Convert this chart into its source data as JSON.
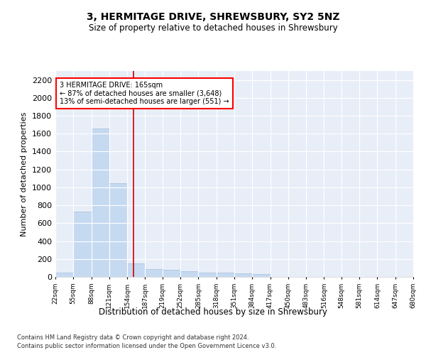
{
  "title": "3, HERMITAGE DRIVE, SHREWSBURY, SY2 5NZ",
  "subtitle": "Size of property relative to detached houses in Shrewsbury",
  "xlabel": "Distribution of detached houses by size in Shrewsbury",
  "ylabel": "Number of detached properties",
  "footer_line1": "Contains HM Land Registry data © Crown copyright and database right 2024.",
  "footer_line2": "Contains public sector information licensed under the Open Government Licence v3.0.",
  "annotation_line1": "3 HERMITAGE DRIVE: 165sqm",
  "annotation_line2": "← 87% of detached houses are smaller (3,648)",
  "annotation_line3": "13% of semi-detached houses are larger (551) →",
  "bar_color": "#c5d9f1",
  "bar_edge_color": "#adc4e0",
  "redline_x": 165,
  "redline_color": "#cc0000",
  "background_color": "#e8eef8",
  "bins_start": [
    22,
    55,
    88,
    121,
    154,
    187,
    219,
    252,
    285,
    318,
    351,
    384,
    417,
    450,
    483,
    516,
    548,
    581,
    614,
    647
  ],
  "bin_width": 33,
  "values": [
    50,
    730,
    1660,
    1050,
    150,
    90,
    80,
    60,
    50,
    50,
    40,
    35,
    0,
    0,
    0,
    0,
    0,
    0,
    0,
    0
  ],
  "ylim": [
    0,
    2300
  ],
  "yticks": [
    0,
    200,
    400,
    600,
    800,
    1000,
    1200,
    1400,
    1600,
    1800,
    2000,
    2200
  ],
  "xlim": [
    22,
    680
  ],
  "tick_labels": [
    "22sqm",
    "55sqm",
    "88sqm",
    "121sqm",
    "154sqm",
    "187sqm",
    "219sqm",
    "252sqm",
    "285sqm",
    "318sqm",
    "351sqm",
    "384sqm",
    "417sqm",
    "450sqm",
    "483sqm",
    "516sqm",
    "548sqm",
    "581sqm",
    "614sqm",
    "647sqm",
    "680sqm"
  ]
}
